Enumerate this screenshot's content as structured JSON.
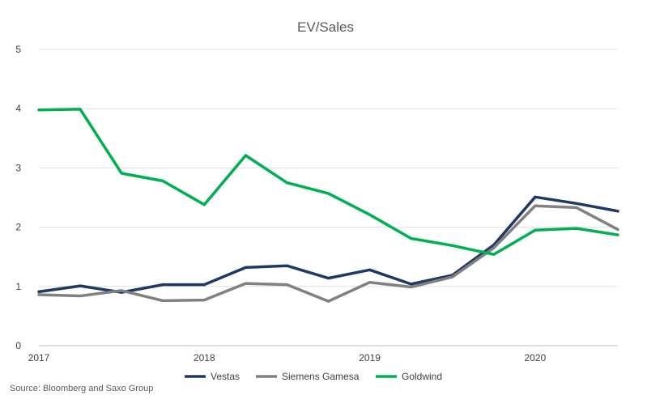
{
  "chart_data": {
    "type": "line",
    "title": "EV/Sales",
    "xlabel": "",
    "ylabel": "",
    "x": [
      "2017 Q1",
      "2017 Q2",
      "2017 Q3",
      "2017 Q4",
      "2018 Q1",
      "2018 Q2",
      "2018 Q3",
      "2018 Q4",
      "2019 Q1",
      "2019 Q2",
      "2019 Q3",
      "2019 Q4",
      "2020 Q1",
      "2020 Q2",
      "2020 Q3"
    ],
    "x_tick_labels": [
      "2017",
      "2018",
      "2019",
      "2020"
    ],
    "ylim": [
      0,
      5
    ],
    "y_ticks": [
      "0",
      "1",
      "2",
      "3",
      "4",
      "5"
    ],
    "grid": "horizontal",
    "legend_position": "bottom",
    "series": [
      {
        "name": "Vestas",
        "color": "#1f3864",
        "values": [
          0.91,
          1.01,
          0.9,
          1.03,
          1.03,
          1.32,
          1.35,
          1.14,
          1.28,
          1.04,
          1.19,
          1.7,
          2.51,
          2.4,
          2.27
        ]
      },
      {
        "name": "Siemens Gamesa",
        "color": "#808080",
        "values": [
          0.86,
          0.84,
          0.93,
          0.76,
          0.77,
          1.05,
          1.03,
          0.75,
          1.07,
          0.99,
          1.16,
          1.65,
          2.36,
          2.33,
          1.96
        ]
      },
      {
        "name": "Goldwind",
        "color": "#00b050",
        "values": [
          3.98,
          3.99,
          2.91,
          2.78,
          2.38,
          3.21,
          2.75,
          2.57,
          2.21,
          1.81,
          1.69,
          1.54,
          1.95,
          1.98,
          1.87
        ]
      }
    ]
  },
  "source": "Source: Bloomberg and Saxo Group"
}
